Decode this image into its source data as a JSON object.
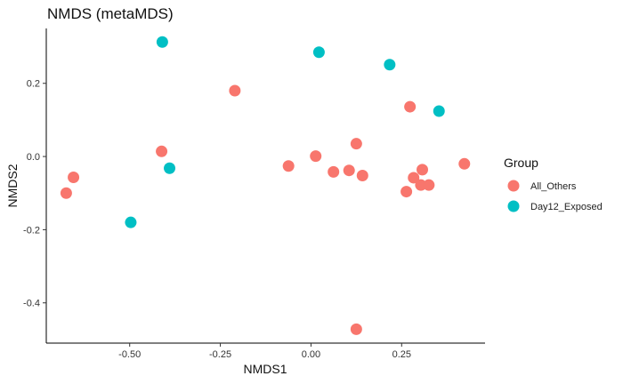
{
  "chart_data": {
    "type": "scatter",
    "title": "NMDS (metaMDS)",
    "xlabel": "NMDS1",
    "ylabel": "NMDS2",
    "xlim": [
      -0.73,
      0.48
    ],
    "ylim": [
      -0.51,
      0.35
    ],
    "x_ticks": [
      -0.5,
      -0.25,
      0.0,
      0.25
    ],
    "x_tick_labels": [
      "-0.50",
      "-0.25",
      "0.00",
      "0.25"
    ],
    "y_ticks": [
      -0.4,
      -0.2,
      0.0,
      0.2
    ],
    "y_tick_labels": [
      "-0.4",
      "-0.2",
      "0.0",
      "0.2"
    ],
    "grid": false,
    "legend": {
      "title": "Group",
      "position": "right"
    },
    "series": [
      {
        "name": "All_Others",
        "color": "#F8766D",
        "points": [
          {
            "x": -0.675,
            "y": -0.1
          },
          {
            "x": -0.655,
            "y": -0.057
          },
          {
            "x": -0.412,
            "y": 0.014
          },
          {
            "x": -0.21,
            "y": 0.18
          },
          {
            "x": -0.062,
            "y": -0.026
          },
          {
            "x": 0.013,
            "y": 0.001
          },
          {
            "x": 0.062,
            "y": -0.042
          },
          {
            "x": 0.105,
            "y": -0.038
          },
          {
            "x": 0.125,
            "y": 0.035
          },
          {
            "x": 0.142,
            "y": -0.052
          },
          {
            "x": 0.125,
            "y": -0.472
          },
          {
            "x": 0.263,
            "y": -0.096
          },
          {
            "x": 0.273,
            "y": 0.136
          },
          {
            "x": 0.283,
            "y": -0.058
          },
          {
            "x": 0.303,
            "y": -0.078
          },
          {
            "x": 0.307,
            "y": -0.036
          },
          {
            "x": 0.325,
            "y": -0.078
          },
          {
            "x": 0.423,
            "y": -0.02
          }
        ]
      },
      {
        "name": "Day12_Exposed",
        "color": "#00BFC4",
        "points": [
          {
            "x": -0.41,
            "y": 0.313
          },
          {
            "x": -0.39,
            "y": -0.032
          },
          {
            "x": -0.497,
            "y": -0.18
          },
          {
            "x": 0.022,
            "y": 0.285
          },
          {
            "x": 0.217,
            "y": 0.251
          },
          {
            "x": 0.353,
            "y": 0.124
          }
        ]
      }
    ]
  }
}
